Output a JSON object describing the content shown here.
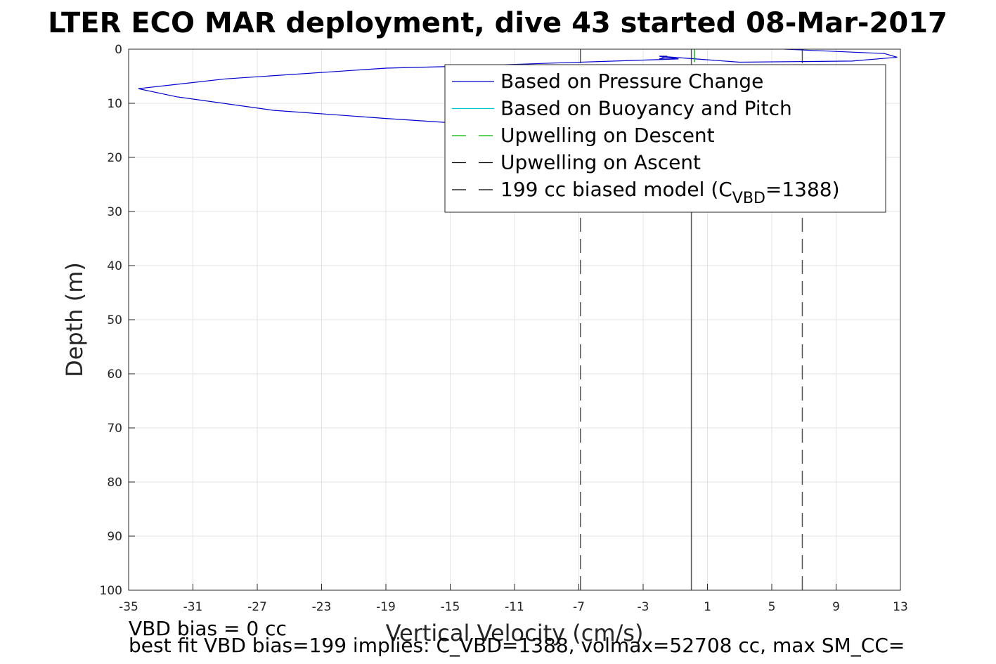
{
  "chart_data": {
    "type": "line",
    "title": "LTER ECO MAR deployment, dive 43 started 08-Mar-2017",
    "xlabel": "Vertical Velocity (cm/s)",
    "ylabel": "Depth (m)",
    "xlim": [
      -35,
      13
    ],
    "ylim": [
      0,
      100
    ],
    "y_reversed": true,
    "grid": true,
    "x_ticks": [
      "-35",
      "-31",
      "-27",
      "-23",
      "-19",
      "-15",
      "-11",
      "-7",
      "-3",
      "1",
      "5",
      "9",
      "13"
    ],
    "y_ticks": [
      "0",
      "10",
      "20",
      "30",
      "40",
      "50",
      "60",
      "70",
      "80",
      "90",
      "100"
    ],
    "legend_position": "top-right",
    "legend": [
      {
        "label": "Based on Pressure Change",
        "color": "#0000cc",
        "style": "solid"
      },
      {
        "label": "Based on Buoyancy and Pitch",
        "color": "#00c8c8",
        "style": "solid"
      },
      {
        "label": "Upwelling on Descent",
        "color": "#00b400",
        "style": "dashed"
      },
      {
        "label": "Upwelling on Ascent",
        "color": "#000000",
        "style": "dashed"
      },
      {
        "label": "199 cc biased model (C",
        "label_sub": "VBD",
        "label_tail": "=1388)",
        "color": "#000000",
        "style": "dashed"
      }
    ],
    "series": [
      {
        "name": "Based on Pressure Change",
        "color": "#0000cc",
        "x": [
          5.8,
          12.0,
          12.8,
          10.0,
          3.0,
          -2.0,
          -0.8,
          -2.0,
          -1.5,
          -2.0,
          -0.8,
          -8.0,
          -15.0,
          -19.0,
          -29.0,
          -34.4,
          -32.0,
          -26.0,
          -19.0,
          -15.0,
          -8.0
        ],
        "y": [
          0.0,
          0.8,
          1.5,
          2.2,
          2.4,
          1.3,
          1.8,
          1.3,
          1.3,
          1.8,
          1.8,
          2.5,
          3.2,
          3.5,
          5.5,
          7.3,
          8.8,
          11.3,
          12.8,
          13.6,
          14.0
        ]
      },
      {
        "name": "Based on Buoyancy and Pitch",
        "color": "#00c8c8",
        "x": [
          0.2,
          0.2
        ],
        "y": [
          0.0,
          2.4
        ]
      },
      {
        "name": "Upwelling on Descent",
        "color": "#00b400",
        "x": [
          0.2,
          0.2
        ],
        "y": [
          0.0,
          2.4
        ]
      }
    ],
    "vlines": [
      {
        "x": 0,
        "color": "#555555",
        "style": "solid"
      },
      {
        "x": -6.9,
        "color": "#555555",
        "style": "dashed"
      },
      {
        "x": 6.9,
        "color": "#555555",
        "style": "dashed"
      }
    ],
    "notes": [
      "VBD bias = 0 cc",
      "best fit VBD bias=199 implies: C_VBD=1388, volmax=52708 cc, max SM_CC="
    ]
  }
}
